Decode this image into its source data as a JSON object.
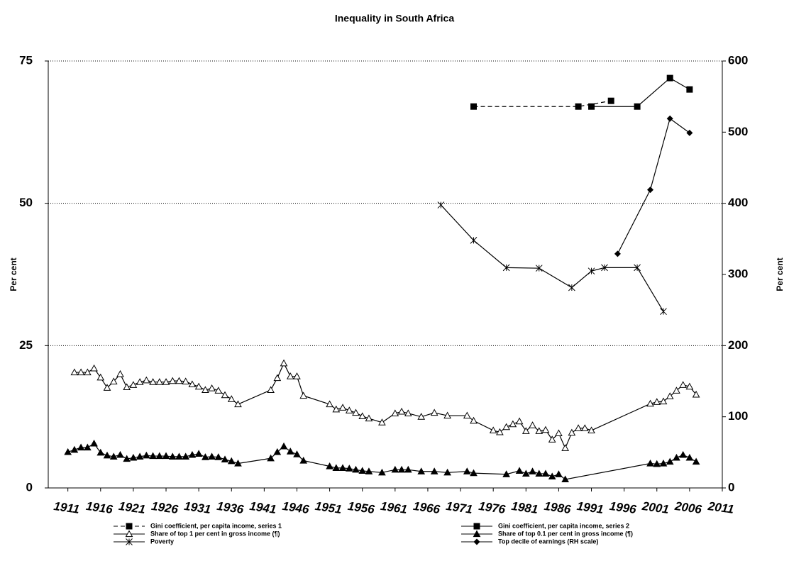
{
  "chart_data": {
    "type": "line",
    "title": "Inequality in South Africa",
    "y_label": "Per cent",
    "y2_label": "Per cent",
    "xlim": [
      1908,
      2011
    ],
    "xticks": [
      1911,
      1916,
      1921,
      1926,
      1931,
      1936,
      1941,
      1946,
      1951,
      1956,
      1961,
      1966,
      1971,
      1976,
      1981,
      1986,
      1991,
      1996,
      2001,
      2006,
      2011
    ],
    "ylim": [
      0,
      75
    ],
    "yticks": [
      0,
      25,
      50,
      75
    ],
    "y2lim": [
      0,
      600
    ],
    "y2ticks": [
      0,
      100,
      200,
      300,
      400,
      500,
      600
    ],
    "grid": true,
    "series": [
      {
        "name": "Gini coefficient,  per capita income,  series 1",
        "color": "#000000",
        "marker": "square",
        "line_style": "dashed",
        "x": [
          1973,
          1989,
          1994
        ],
        "values": [
          67,
          67,
          68
        ]
      },
      {
        "name": "Gini coefficient,  per capita income,  series 2",
        "color": "#000000",
        "marker": "square",
        "line_style": "solid",
        "x": [
          1991,
          1998,
          2003,
          2006
        ],
        "values": [
          67,
          67,
          72,
          70
        ]
      },
      {
        "name": "Share of top 1 per cent in gross income  (¶)",
        "color": "#000000",
        "marker": "open-triangle",
        "line_style": "solid",
        "x": [
          1912,
          1913,
          1914,
          1915,
          1916,
          1917,
          1918,
          1919,
          1920,
          1921,
          1922,
          1923,
          1924,
          1925,
          1926,
          1927,
          1928,
          1929,
          1930,
          1931,
          1932,
          1933,
          1934,
          1935,
          1936,
          1937,
          1942,
          1943,
          1944,
          1945,
          1946,
          1947,
          1951,
          1952,
          1953,
          1954,
          1955,
          1956,
          1957,
          1959,
          1961,
          1962,
          1963,
          1965,
          1967,
          1969,
          1972,
          1973,
          1976,
          1977,
          1978,
          1979,
          1980,
          1981,
          1982,
          1983,
          1984,
          1985,
          1986,
          1987,
          1988,
          1989,
          1990,
          1991,
          2000,
          2001,
          2002,
          2003,
          2004,
          2005,
          2006,
          2007
        ],
        "values": [
          20.3,
          20.3,
          20.3,
          21,
          19.4,
          17.6,
          18.7,
          20,
          17.7,
          18.1,
          18.6,
          18.9,
          18.6,
          18.6,
          18.6,
          18.8,
          18.8,
          18.7,
          18.2,
          17.8,
          17.2,
          17.5,
          17.1,
          16.3,
          15.6,
          14.7,
          17.2,
          19.3,
          21.9,
          19.6,
          19.6,
          16.2,
          14.7,
          13.8,
          14.1,
          13.6,
          13.2,
          12.6,
          12.2,
          11.5,
          13.1,
          13.4,
          13.1,
          12.5,
          13.2,
          12.7,
          12.7,
          11.8,
          10.1,
          9.8,
          10.7,
          11.2,
          11.7,
          10,
          11,
          10,
          10.2,
          8.5,
          9.6,
          7,
          9.7,
          10.5,
          10.5,
          10.1,
          14.8,
          15.1,
          15.2,
          16.1,
          17.1,
          18.1,
          17.8,
          16.4
        ]
      },
      {
        "name": "Share of top 0.1 per cent in gross income  (¶)",
        "color": "#000000",
        "marker": "filled-triangle",
        "line_style": "solid",
        "x": [
          1911,
          1912,
          1913,
          1914,
          1915,
          1916,
          1917,
          1918,
          1919,
          1920,
          1921,
          1922,
          1923,
          1924,
          1925,
          1926,
          1927,
          1928,
          1929,
          1930,
          1931,
          1932,
          1933,
          1934,
          1935,
          1936,
          1937,
          1942,
          1943,
          1944,
          1945,
          1946,
          1947,
          1951,
          1952,
          1953,
          1954,
          1955,
          1956,
          1957,
          1959,
          1961,
          1962,
          1963,
          1965,
          1967,
          1969,
          1972,
          1973,
          1978,
          1980,
          1981,
          1982,
          1983,
          1984,
          1985,
          1986,
          1987,
          2000,
          2001,
          2002,
          2003,
          2004,
          2005,
          2006,
          2007
        ],
        "values": [
          6.3,
          6.7,
          7.1,
          7.1,
          7.8,
          6.2,
          5.7,
          5.5,
          5.8,
          5.1,
          5.3,
          5.5,
          5.7,
          5.6,
          5.6,
          5.6,
          5.5,
          5.5,
          5.5,
          5.8,
          6,
          5.4,
          5.5,
          5.4,
          5,
          4.7,
          4.3,
          5.2,
          6.3,
          7.3,
          6.4,
          5.9,
          4.8,
          3.8,
          3.5,
          3.5,
          3.4,
          3.2,
          3,
          2.9,
          2.7,
          3.2,
          3.2,
          3.2,
          2.9,
          2.9,
          2.7,
          2.9,
          2.6,
          2.4,
          3,
          2.5,
          2.9,
          2.5,
          2.5,
          2,
          2.4,
          1.5,
          4.3,
          4.2,
          4.3,
          4.6,
          5.3,
          5.8,
          5.3,
          4.6
        ]
      },
      {
        "name": "Poverty",
        "color": "#000000",
        "marker": "cross",
        "line_style": "solid",
        "x": [
          1968,
          1973,
          1978,
          1983,
          1988,
          1991,
          1993,
          1998,
          2002
        ],
        "values": [
          49.7,
          43.5,
          38.7,
          38.6,
          35.2,
          38.1,
          38.7,
          38.7,
          31
        ]
      },
      {
        "name": "Top decile of earnings (RH scale)",
        "color": "#000000",
        "marker": "diamond",
        "line_style": "solid",
        "axis": "y2",
        "x": [
          1995,
          2000,
          2003,
          2006
        ],
        "values": [
          329,
          419,
          519,
          499
        ]
      }
    ]
  }
}
